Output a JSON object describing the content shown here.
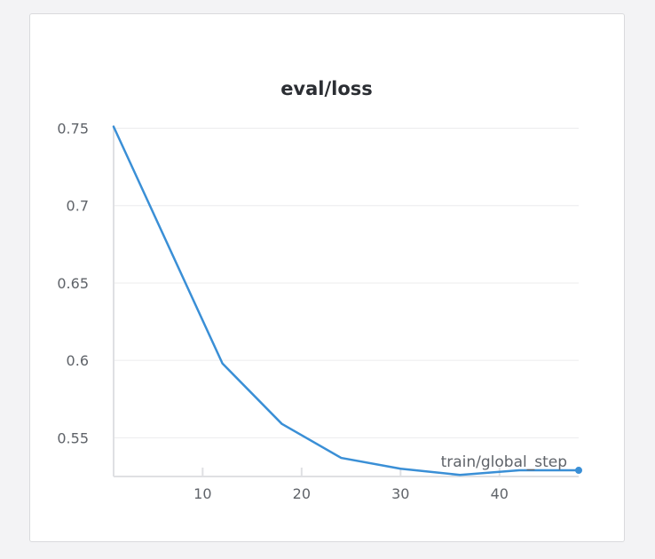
{
  "chart_data": {
    "type": "line",
    "title": "eval/loss",
    "xlabel": "train/global_step",
    "ylabel": "",
    "xlim": [
      1,
      48
    ],
    "ylim": [
      0.525,
      0.752
    ],
    "x_ticks": [
      10,
      20,
      30,
      40
    ],
    "y_ticks": [
      0.55,
      0.6,
      0.65,
      0.7,
      0.75
    ],
    "x_tick_labels": [
      "10",
      "20",
      "30",
      "40"
    ],
    "y_tick_labels": [
      "0.55",
      "0.6",
      "0.65",
      "0.7",
      "0.75"
    ],
    "grid": true,
    "series": [
      {
        "color": "#3a8fd6",
        "x": [
          1,
          12,
          18,
          24,
          30,
          36,
          42,
          48
        ],
        "y": [
          0.751,
          0.598,
          0.559,
          0.537,
          0.53,
          0.526,
          0.529,
          0.529
        ]
      }
    ]
  }
}
